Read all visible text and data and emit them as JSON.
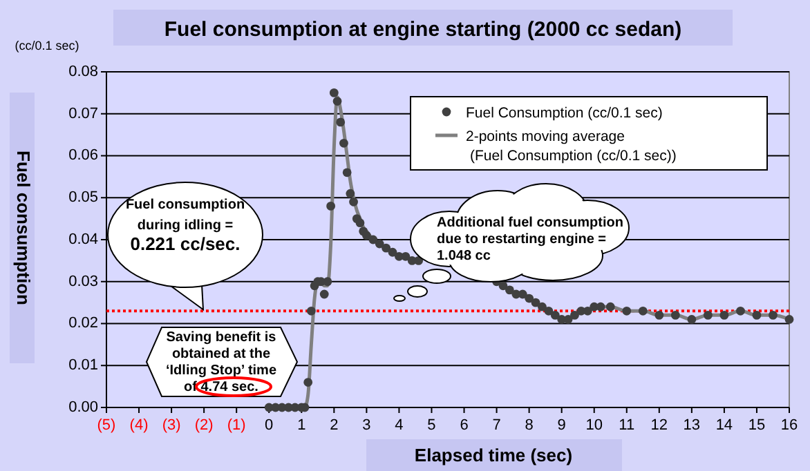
{
  "chart_data": {
    "type": "scatter",
    "title": "Fuel consumption at engine starting (2000 cc sedan)",
    "xlabel": "Elapsed time (sec)",
    "ylabel": "Fuel consumption",
    "xlim": [
      -5,
      16
    ],
    "ylim": [
      0,
      0.08
    ],
    "xticks": [
      {
        "value": -5,
        "label": "(5)"
      },
      {
        "value": -4,
        "label": "(4)"
      },
      {
        "value": -3,
        "label": "(3)"
      },
      {
        "value": -2,
        "label": "(2)"
      },
      {
        "value": -1,
        "label": "(1)"
      },
      0,
      1,
      2,
      3,
      4,
      5,
      6,
      7,
      8,
      9,
      10,
      11,
      12,
      13,
      14,
      15,
      16
    ],
    "yticks": [
      {
        "value": 0,
        "label": "0.00"
      },
      0.01,
      0.02,
      0.03,
      0.04,
      0.05,
      0.06,
      0.07,
      0.08
    ],
    "grid": "y",
    "legend": "top right",
    "x": [
      0,
      0.2,
      0.4,
      0.6,
      0.8,
      1.0,
      1.1,
      1.2,
      1.3,
      1.4,
      1.5,
      1.6,
      1.7,
      1.8,
      1.9,
      2.0,
      2.1,
      2.2,
      2.3,
      2.4,
      2.5,
      2.6,
      2.7,
      2.8,
      2.9,
      3.0,
      3.2,
      3.4,
      3.6,
      3.8,
      4.0,
      4.2,
      4.4,
      4.6,
      4.8,
      6.0,
      7.0,
      7.2,
      7.4,
      7.6,
      7.8,
      8.0,
      8.2,
      8.4,
      8.6,
      8.8,
      9.0,
      9.2,
      9.4,
      9.6,
      9.8,
      10.0,
      10.2,
      10.5,
      11.0,
      11.5,
      12.0,
      12.5,
      13.0,
      13.5,
      14.0,
      14.5,
      15.0,
      15.5,
      16.0
    ],
    "series": [
      {
        "name": "Fuel Consumption (cc/0.1 sec)",
        "marker": "circle",
        "color": "#404040",
        "values": [
          0,
          0,
          0,
          0,
          0,
          0,
          0,
          0.006,
          0.023,
          0.029,
          0.03,
          0.03,
          0.027,
          0.03,
          0.048,
          0.075,
          0.073,
          0.068,
          0.063,
          0.056,
          0.051,
          0.049,
          0.045,
          0.044,
          0.042,
          0.041,
          0.04,
          0.039,
          0.038,
          0.037,
          0.036,
          0.036,
          0.035,
          0.035,
          null,
          null,
          0.03,
          0.029,
          0.028,
          0.027,
          0.027,
          0.026,
          0.025,
          0.024,
          0.023,
          0.022,
          0.021,
          0.021,
          0.022,
          0.023,
          0.023,
          0.024,
          0.024,
          0.024,
          0.023,
          0.023,
          0.022,
          0.022,
          0.021,
          0.022,
          0.022,
          0.023,
          0.022,
          0.022,
          0.021
        ]
      },
      {
        "name": "2-points moving average\n(Fuel Consumption (cc/0.1 sec))",
        "type": "line",
        "marker": "none",
        "line_style": "solid",
        "color": "#808080",
        "values": [
          0,
          0,
          0,
          0,
          0,
          0,
          0,
          0.003,
          0.015,
          0.026,
          0.03,
          0.03,
          0.029,
          0.029,
          0.039,
          0.062,
          0.074,
          0.071,
          0.066,
          0.06,
          0.054,
          0.05,
          0.047,
          0.045,
          0.043,
          0.042,
          0.04,
          0.039,
          0.038,
          0.037,
          0.036,
          0.036,
          0.035,
          0.035,
          null,
          null,
          0.03,
          0.029,
          0.028,
          0.027,
          0.027,
          0.026,
          0.025,
          0.024,
          0.023,
          0.022,
          0.021,
          0.021,
          0.022,
          0.023,
          0.023,
          0.024,
          0.024,
          0.024,
          0.023,
          0.023,
          0.022,
          0.022,
          0.021,
          0.022,
          0.022,
          0.023,
          0.022,
          0.022,
          0.021
        ]
      }
    ],
    "ref_lines": [
      {
        "axis": "y",
        "value": 0.023,
        "color": "#ff0000",
        "line_style": "dotted"
      }
    ],
    "annotations": [
      "(cc/0.1 sec)",
      "Saving benefit is\nobtained at the\n‘Idling Stop’ time\nof 4.74 sec.",
      "Additional fuel consumption\ndue to restarting engine =\n1.048 cc",
      "Fuel consumption\nduring idling =\n0.221 cc/sec."
    ]
  }
}
